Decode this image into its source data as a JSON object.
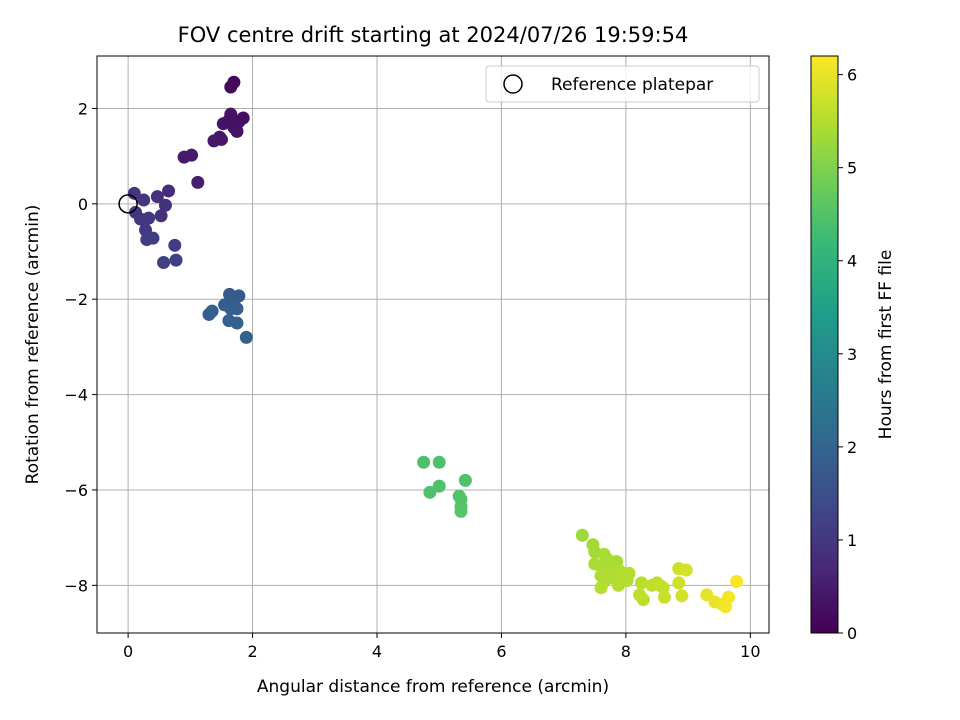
{
  "chart_data": {
    "type": "scatter",
    "title": "FOV centre drift starting at 2024/07/26 19:59:54",
    "xlabel": "Angular distance from reference (arcmin)",
    "ylabel": "Rotation from reference (arcmin)",
    "xlim": [
      -0.5,
      10.3
    ],
    "ylim": [
      -9,
      3.1
    ],
    "xticks": [
      0,
      2,
      4,
      6,
      8,
      10
    ],
    "yticks": [
      -8,
      -6,
      -4,
      -2,
      0,
      2
    ],
    "xtick_labels": [
      "0",
      "2",
      "4",
      "6",
      "8",
      "10"
    ],
    "ytick_labels": [
      "−8",
      "−6",
      "−4",
      "−2",
      "0",
      "2"
    ],
    "grid": true,
    "legend": {
      "position": "top-right",
      "entries": [
        "Reference platepar"
      ]
    },
    "reference_point": {
      "x": 0,
      "y": 0
    },
    "colorbar": {
      "label": "Hours from first FF file",
      "colormap": "viridis",
      "range": [
        0,
        6.2
      ],
      "ticks": [
        0,
        1,
        2,
        3,
        4,
        5,
        6
      ],
      "tick_labels": [
        "0",
        "1",
        "2",
        "3",
        "4",
        "5",
        "6"
      ]
    },
    "points": [
      {
        "x": 0.1,
        "y": 0.22,
        "h": 0.95
      },
      {
        "x": 0.25,
        "y": 0.08,
        "h": 0.95
      },
      {
        "x": 0.12,
        "y": -0.18,
        "h": 0.95
      },
      {
        "x": 0.2,
        "y": -0.32,
        "h": 1.0
      },
      {
        "x": 0.33,
        "y": -0.3,
        "h": 1.0
      },
      {
        "x": 0.28,
        "y": -0.55,
        "h": 1.0
      },
      {
        "x": 0.3,
        "y": -0.75,
        "h": 1.1
      },
      {
        "x": 0.4,
        "y": -0.72,
        "h": 1.1
      },
      {
        "x": 0.47,
        "y": 0.15,
        "h": 0.85
      },
      {
        "x": 0.53,
        "y": -0.25,
        "h": 0.9
      },
      {
        "x": 0.6,
        "y": -0.03,
        "h": 0.9
      },
      {
        "x": 0.65,
        "y": 0.27,
        "h": 0.8
      },
      {
        "x": 0.57,
        "y": -1.23,
        "h": 1.15
      },
      {
        "x": 0.77,
        "y": -1.18,
        "h": 1.15
      },
      {
        "x": 0.75,
        "y": -0.87,
        "h": 1.1
      },
      {
        "x": 1.12,
        "y": 0.45,
        "h": 0.5
      },
      {
        "x": 0.9,
        "y": 0.98,
        "h": 0.45
      },
      {
        "x": 1.02,
        "y": 1.02,
        "h": 0.45
      },
      {
        "x": 1.38,
        "y": 1.32,
        "h": 0.4
      },
      {
        "x": 1.47,
        "y": 1.4,
        "h": 0.4
      },
      {
        "x": 1.5,
        "y": 1.35,
        "h": 0.35
      },
      {
        "x": 1.53,
        "y": 1.68,
        "h": 0.35
      },
      {
        "x": 1.62,
        "y": 1.75,
        "h": 0.3
      },
      {
        "x": 1.65,
        "y": 1.88,
        "h": 0.3
      },
      {
        "x": 1.7,
        "y": 1.6,
        "h": 0.3
      },
      {
        "x": 1.75,
        "y": 1.52,
        "h": 0.3
      },
      {
        "x": 1.78,
        "y": 1.72,
        "h": 0.3
      },
      {
        "x": 1.85,
        "y": 1.8,
        "h": 0.25
      },
      {
        "x": 1.73,
        "y": 1.62,
        "h": 0.3
      },
      {
        "x": 1.65,
        "y": 2.45,
        "h": 0.15
      },
      {
        "x": 1.7,
        "y": 2.55,
        "h": 0.1
      },
      {
        "x": 1.3,
        "y": -2.32,
        "h": 1.85
      },
      {
        "x": 1.35,
        "y": -2.25,
        "h": 1.85
      },
      {
        "x": 1.55,
        "y": -2.12,
        "h": 1.8
      },
      {
        "x": 1.63,
        "y": -1.9,
        "h": 1.75
      },
      {
        "x": 1.7,
        "y": -2.05,
        "h": 1.8
      },
      {
        "x": 1.75,
        "y": -2.2,
        "h": 1.85
      },
      {
        "x": 1.78,
        "y": -1.93,
        "h": 1.75
      },
      {
        "x": 1.62,
        "y": -2.45,
        "h": 1.9
      },
      {
        "x": 1.75,
        "y": -2.5,
        "h": 1.9
      },
      {
        "x": 1.9,
        "y": -2.8,
        "h": 1.95
      },
      {
        "x": 1.65,
        "y": -2.2,
        "h": 1.85
      },
      {
        "x": 4.75,
        "y": -5.42,
        "h": 4.4
      },
      {
        "x": 5.0,
        "y": -5.42,
        "h": 4.4
      },
      {
        "x": 4.85,
        "y": -6.05,
        "h": 4.45
      },
      {
        "x": 5.0,
        "y": -5.92,
        "h": 4.45
      },
      {
        "x": 5.32,
        "y": -6.13,
        "h": 4.5
      },
      {
        "x": 5.42,
        "y": -5.8,
        "h": 4.45
      },
      {
        "x": 5.35,
        "y": -6.2,
        "h": 4.5
      },
      {
        "x": 5.35,
        "y": -6.35,
        "h": 4.5
      },
      {
        "x": 5.35,
        "y": -6.45,
        "h": 4.55
      },
      {
        "x": 7.3,
        "y": -6.95,
        "h": 5.3
      },
      {
        "x": 7.47,
        "y": -7.15,
        "h": 5.35
      },
      {
        "x": 7.5,
        "y": -7.3,
        "h": 5.35
      },
      {
        "x": 7.5,
        "y": -7.55,
        "h": 5.4
      },
      {
        "x": 7.6,
        "y": -7.6,
        "h": 5.4
      },
      {
        "x": 7.65,
        "y": -7.35,
        "h": 5.4
      },
      {
        "x": 7.7,
        "y": -7.45,
        "h": 5.4
      },
      {
        "x": 7.6,
        "y": -7.8,
        "h": 5.45
      },
      {
        "x": 7.65,
        "y": -7.92,
        "h": 5.45
      },
      {
        "x": 7.6,
        "y": -8.05,
        "h": 5.5
      },
      {
        "x": 7.75,
        "y": -7.7,
        "h": 5.45
      },
      {
        "x": 7.8,
        "y": -7.85,
        "h": 5.45
      },
      {
        "x": 7.85,
        "y": -7.5,
        "h": 5.4
      },
      {
        "x": 7.9,
        "y": -7.7,
        "h": 5.45
      },
      {
        "x": 7.95,
        "y": -7.8,
        "h": 5.5
      },
      {
        "x": 8.05,
        "y": -7.75,
        "h": 5.5
      },
      {
        "x": 7.88,
        "y": -8.0,
        "h": 5.5
      },
      {
        "x": 8.02,
        "y": -7.9,
        "h": 5.5
      },
      {
        "x": 8.25,
        "y": -7.95,
        "h": 5.55
      },
      {
        "x": 8.22,
        "y": -8.2,
        "h": 5.6
      },
      {
        "x": 8.28,
        "y": -8.3,
        "h": 5.6
      },
      {
        "x": 8.42,
        "y": -8.0,
        "h": 5.6
      },
      {
        "x": 8.5,
        "y": -7.95,
        "h": 5.6
      },
      {
        "x": 8.55,
        "y": -8.0,
        "h": 5.65
      },
      {
        "x": 8.6,
        "y": -8.05,
        "h": 5.65
      },
      {
        "x": 8.62,
        "y": -8.25,
        "h": 5.7
      },
      {
        "x": 8.85,
        "y": -7.65,
        "h": 5.75
      },
      {
        "x": 8.85,
        "y": -7.95,
        "h": 5.75
      },
      {
        "x": 8.9,
        "y": -8.22,
        "h": 5.8
      },
      {
        "x": 8.97,
        "y": -7.68,
        "h": 5.8
      },
      {
        "x": 9.3,
        "y": -8.2,
        "h": 5.95
      },
      {
        "x": 9.43,
        "y": -8.35,
        "h": 6.0
      },
      {
        "x": 9.55,
        "y": -8.4,
        "h": 6.05
      },
      {
        "x": 9.6,
        "y": -8.45,
        "h": 6.1
      },
      {
        "x": 9.65,
        "y": -8.25,
        "h": 6.1
      },
      {
        "x": 9.78,
        "y": -7.92,
        "h": 6.15
      }
    ]
  }
}
